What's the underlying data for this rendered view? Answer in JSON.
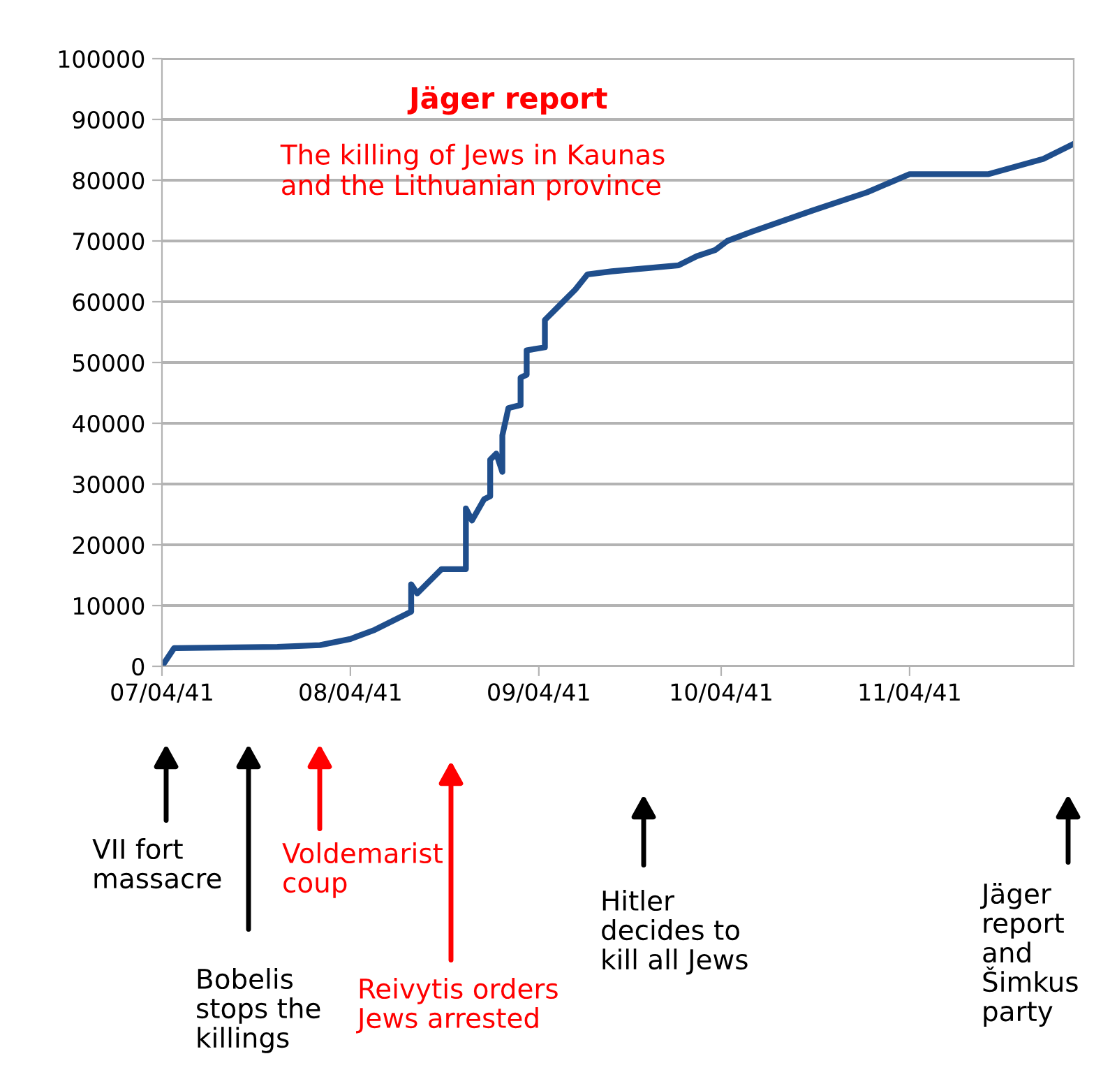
{
  "chart_data": {
    "type": "line",
    "title": "Jäger report",
    "subtitle": "The killing of Jews in Kaunas\nand the Lithuanian province",
    "x": [
      "1941-07-04",
      "1941-07-06",
      "1941-07-23",
      "1941-07-30",
      "1941-08-04",
      "1941-08-08",
      "1941-08-11",
      "1941-08-14",
      "1941-08-14",
      "1941-08-15",
      "1941-08-16",
      "1941-08-19",
      "1941-08-23",
      "1941-08-23",
      "1941-08-24",
      "1941-08-26",
      "1941-08-27",
      "1941-08-27",
      "1941-08-28",
      "1941-08-29",
      "1941-08-29",
      "1941-08-30",
      "1941-09-01",
      "1941-09-01",
      "1941-09-02",
      "1941-09-02",
      "1941-09-05",
      "1941-09-05",
      "1941-09-07",
      "1941-09-08",
      "1941-09-10",
      "1941-09-12",
      "1941-09-16",
      "1941-09-27",
      "1941-09-30",
      "1941-10-03",
      "1941-10-05",
      "1941-10-09",
      "1941-10-19",
      "1941-10-28",
      "1941-11-04",
      "1941-11-17",
      "1941-11-26",
      "1941-12-01"
    ],
    "series": [
      {
        "color": "#1f4e8c",
        "values": [
          0,
          3000,
          3200,
          3500,
          4500,
          6000,
          7500,
          9000,
          13500,
          12000,
          13000,
          16000,
          16000,
          26000,
          24000,
          27500,
          28000,
          34000,
          35000,
          32000,
          38000,
          42500,
          43000,
          47500,
          48000,
          52000,
          52500,
          57000,
          59000,
          60000,
          62000,
          64500,
          65000,
          66000,
          67500,
          68500,
          70000,
          71500,
          75000,
          78000,
          81000,
          81000,
          83500,
          86000
        ]
      }
    ],
    "xlim": [
      "1941-07-04",
      "1941-12-01"
    ],
    "xticks": [
      {
        "value": "1941-07-04",
        "label": "07/04/41"
      },
      {
        "value": "1941-08-04",
        "label": "08/04/41"
      },
      {
        "value": "1941-09-04",
        "label": "09/04/41"
      },
      {
        "value": "1941-10-04",
        "label": "10/04/41"
      },
      {
        "value": "1941-11-04",
        "label": "11/04/41"
      }
    ],
    "ylim": [
      0,
      100000
    ],
    "yticks": [
      0,
      10000,
      20000,
      30000,
      40000,
      50000,
      60000,
      70000,
      80000,
      90000,
      100000
    ],
    "grid": "y",
    "marker": "none",
    "line_style": "solid",
    "annotations": [
      "VII fort\nmassacre",
      "Bobelis\nstops the\nkillings",
      "Voldemarist\ncoup",
      "Reivytis orders\nJews arrested",
      "Hitler\ndecides to\nkill all Jews",
      "Jäger\nreport\nand\nŠimkus\nparty"
    ]
  }
}
